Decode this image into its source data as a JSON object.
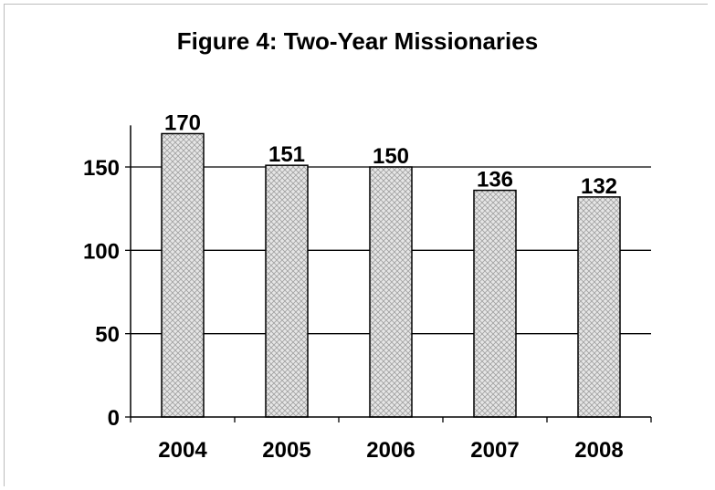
{
  "chart_data": {
    "type": "bar",
    "title": "Figure 4: Two-Year Missionaries",
    "xlabel": "",
    "ylabel": "",
    "categories": [
      "2004",
      "2005",
      "2006",
      "2007",
      "2008"
    ],
    "values": [
      170,
      151,
      150,
      136,
      132
    ],
    "data_labels": [
      "170",
      "151",
      "150",
      "136",
      "132"
    ],
    "yticks": [
      0,
      50,
      100,
      150
    ],
    "ylim": [
      0,
      175
    ],
    "grid": true,
    "bar_pattern": "crosshatch",
    "bar_color": "#d9d9d9",
    "legend": "none"
  }
}
